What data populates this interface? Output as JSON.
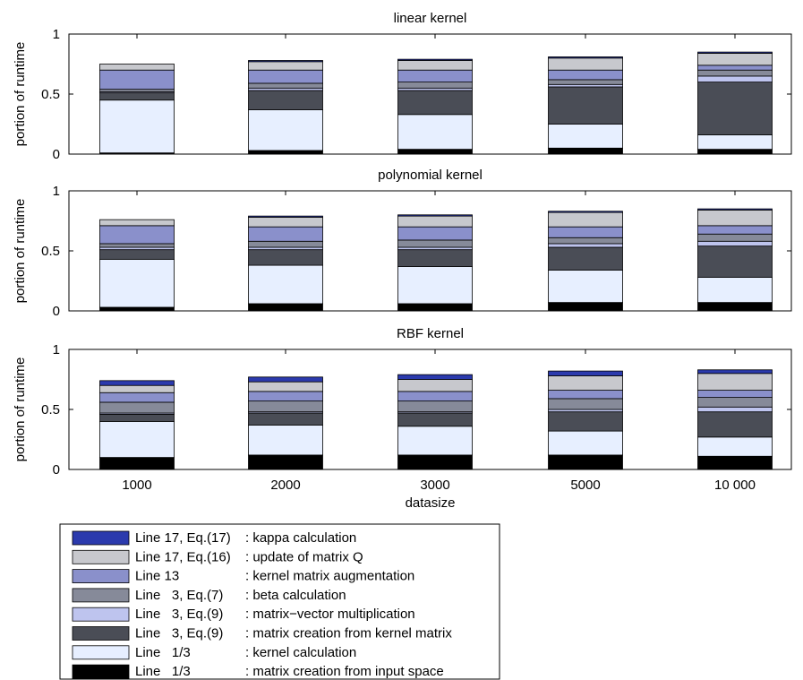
{
  "colors": {
    "kappa": "#2b3aad",
    "updateQ": "#c7c8cd",
    "kernelAug": "#8a90cb",
    "beta": "#868a99",
    "matvec": "#bec4ee",
    "matFromKernel": "#4a4d56",
    "kernelCalc": "#e7efff",
    "matFromInput": "#000000"
  },
  "legend": [
    {
      "key": "kappa",
      "left": "Line 17, Eq.(17)",
      "right": ": kappa calculation"
    },
    {
      "key": "updateQ",
      "left": "Line 17, Eq.(16)",
      "right": ": update of matrix Q"
    },
    {
      "key": "kernelAug",
      "left": "Line 13",
      "right": ": kernel matrix augmentation"
    },
    {
      "key": "beta",
      "left": "Line   3, Eq.(7)",
      "right": ": beta calculation"
    },
    {
      "key": "matvec",
      "left": "Line   3, Eq.(9)",
      "right": ": matrix−vector multiplication"
    },
    {
      "key": "matFromKernel",
      "left": "Line   3, Eq.(9)",
      "right": ": matrix creation from kernel matrix"
    },
    {
      "key": "kernelCalc",
      "left": "Line   1/3",
      "right": ": kernel calculation"
    },
    {
      "key": "matFromInput",
      "left": "Line   1/3",
      "right": ": matrix creation from input space"
    }
  ],
  "chart_data": [
    {
      "type": "bar",
      "stacked": true,
      "title": "linear kernel",
      "ylabel": "portion of runtime",
      "xlabel": "",
      "ylim": [
        0,
        1
      ],
      "yticks": [
        "0",
        "0.5",
        "1"
      ],
      "categories": [
        "1000",
        "2000",
        "3000",
        "5000",
        "10 000"
      ],
      "series": [
        {
          "key": "matFromInput",
          "values": [
            0.01,
            0.03,
            0.04,
            0.05,
            0.04
          ]
        },
        {
          "key": "kernelCalc",
          "values": [
            0.44,
            0.34,
            0.29,
            0.2,
            0.12
          ]
        },
        {
          "key": "matFromKernel",
          "values": [
            0.06,
            0.16,
            0.2,
            0.31,
            0.44
          ]
        },
        {
          "key": "matvec",
          "values": [
            0.01,
            0.02,
            0.02,
            0.02,
            0.05
          ]
        },
        {
          "key": "beta",
          "values": [
            0.02,
            0.04,
            0.05,
            0.04,
            0.05
          ]
        },
        {
          "key": "kernelAug",
          "values": [
            0.16,
            0.11,
            0.1,
            0.08,
            0.04
          ]
        },
        {
          "key": "updateQ",
          "values": [
            0.05,
            0.07,
            0.08,
            0.1,
            0.1
          ]
        },
        {
          "key": "kappa",
          "values": [
            0.0,
            0.01,
            0.01,
            0.01,
            0.01
          ]
        }
      ]
    },
    {
      "type": "bar",
      "stacked": true,
      "title": "polynomial kernel",
      "ylabel": "portion of runtime",
      "xlabel": "",
      "ylim": [
        0,
        1
      ],
      "yticks": [
        "0",
        "0.5",
        "1"
      ],
      "categories": [
        "1000",
        "2000",
        "3000",
        "5000",
        "10 000"
      ],
      "series": [
        {
          "key": "matFromInput",
          "values": [
            0.03,
            0.06,
            0.06,
            0.07,
            0.07
          ]
        },
        {
          "key": "kernelCalc",
          "values": [
            0.4,
            0.32,
            0.31,
            0.27,
            0.21
          ]
        },
        {
          "key": "matFromKernel",
          "values": [
            0.08,
            0.13,
            0.14,
            0.19,
            0.26
          ]
        },
        {
          "key": "matvec",
          "values": [
            0.02,
            0.02,
            0.02,
            0.03,
            0.04
          ]
        },
        {
          "key": "beta",
          "values": [
            0.03,
            0.05,
            0.06,
            0.05,
            0.06
          ]
        },
        {
          "key": "kernelAug",
          "values": [
            0.15,
            0.12,
            0.11,
            0.09,
            0.07
          ]
        },
        {
          "key": "updateQ",
          "values": [
            0.05,
            0.08,
            0.09,
            0.12,
            0.13
          ]
        },
        {
          "key": "kappa",
          "values": [
            0.0,
            0.01,
            0.01,
            0.01,
            0.01
          ]
        }
      ]
    },
    {
      "type": "bar",
      "stacked": true,
      "title": "RBF kernel",
      "ylabel": "portion of runtime",
      "xlabel": "datasize",
      "ylim": [
        0,
        1
      ],
      "yticks": [
        "0",
        "0.5",
        "1"
      ],
      "categories": [
        "1000",
        "2000",
        "3000",
        "5000",
        "10 000"
      ],
      "series": [
        {
          "key": "matFromInput",
          "values": [
            0.1,
            0.12,
            0.12,
            0.12,
            0.11
          ]
        },
        {
          "key": "kernelCalc",
          "values": [
            0.3,
            0.25,
            0.24,
            0.2,
            0.16
          ]
        },
        {
          "key": "matFromKernel",
          "values": [
            0.06,
            0.1,
            0.11,
            0.16,
            0.21
          ]
        },
        {
          "key": "matvec",
          "values": [
            0.01,
            0.01,
            0.01,
            0.02,
            0.04
          ]
        },
        {
          "key": "beta",
          "values": [
            0.09,
            0.09,
            0.09,
            0.09,
            0.08
          ]
        },
        {
          "key": "kernelAug",
          "values": [
            0.08,
            0.08,
            0.08,
            0.07,
            0.06
          ]
        },
        {
          "key": "updateQ",
          "values": [
            0.06,
            0.08,
            0.1,
            0.12,
            0.14
          ]
        },
        {
          "key": "kappa",
          "values": [
            0.04,
            0.04,
            0.04,
            0.04,
            0.03
          ]
        }
      ]
    }
  ]
}
